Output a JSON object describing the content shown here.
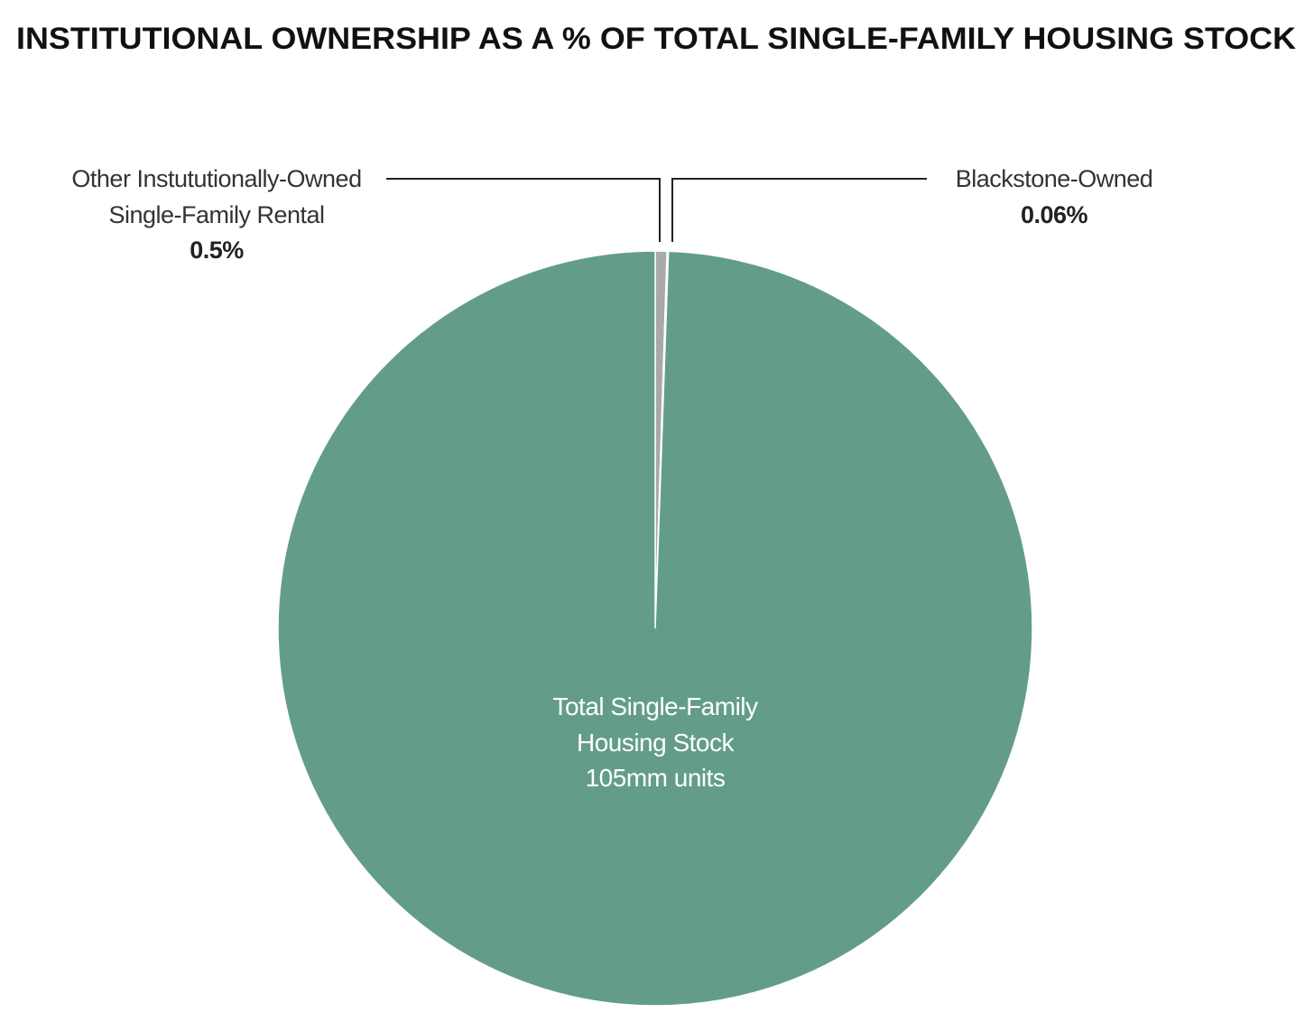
{
  "chart_data": {
    "type": "pie",
    "title": "INSTITUTIONAL OWNERSHIP AS A % OF TOTAL SINGLE-FAMILY HOUSING STOCK",
    "categories": [
      "Other Instututionally-Owned\nSingle-Family Rental",
      "Blackstone-Owned",
      "Total Single-Family\nHousing Stock"
    ],
    "values": [
      0.5,
      0.06,
      99.44
    ],
    "value_labels": [
      "0.5%",
      "0.06%",
      null
    ],
    "colors": [
      "#a8a9a8",
      "#1f4e79",
      "#639d8a"
    ],
    "annotations": [
      "105mm units"
    ]
  }
}
